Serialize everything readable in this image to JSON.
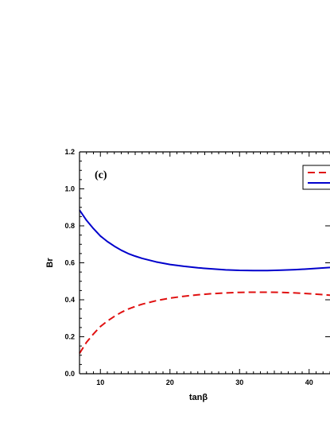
{
  "chart_data": {
    "type": "line",
    "panel_label": "(c)",
    "xlabel": "tanβ",
    "ylabel": "Br",
    "xlim": [
      7,
      43
    ],
    "ylim": [
      0.0,
      1.2
    ],
    "x_ticks": [
      "10",
      "20",
      "30",
      "40"
    ],
    "y_ticks": [
      "0.0",
      "0.2",
      "0.4",
      "0.6",
      "0.8",
      "1.0",
      "1.2"
    ],
    "grid": false,
    "legend_position": "top-right",
    "series": [
      {
        "color": "#0000cc",
        "dash": "solid",
        "x": [
          7,
          8,
          9,
          10,
          11,
          12,
          13,
          14,
          15,
          16,
          18,
          20,
          22,
          24,
          26,
          28,
          30,
          32,
          34,
          36,
          38,
          40,
          43
        ],
        "y": [
          0.885,
          0.83,
          0.785,
          0.745,
          0.715,
          0.69,
          0.668,
          0.65,
          0.636,
          0.624,
          0.605,
          0.591,
          0.581,
          0.573,
          0.567,
          0.562,
          0.559,
          0.558,
          0.558,
          0.56,
          0.563,
          0.567,
          0.575
        ]
      },
      {
        "color": "#e01010",
        "dash": "dashed",
        "x": [
          7,
          8,
          9,
          10,
          11,
          12,
          13,
          14,
          15,
          16,
          18,
          20,
          22,
          24,
          26,
          28,
          30,
          32,
          34,
          36,
          38,
          40,
          43
        ],
        "y": [
          0.11,
          0.17,
          0.215,
          0.255,
          0.285,
          0.31,
          0.332,
          0.35,
          0.364,
          0.376,
          0.395,
          0.409,
          0.419,
          0.427,
          0.433,
          0.437,
          0.44,
          0.441,
          0.441,
          0.44,
          0.437,
          0.433,
          0.425
        ]
      }
    ]
  }
}
